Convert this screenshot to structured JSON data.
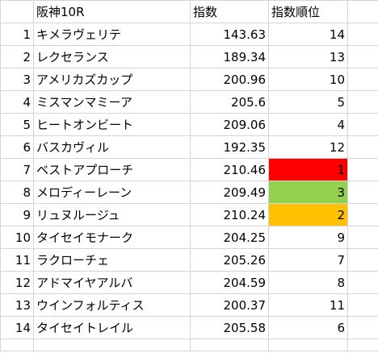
{
  "headers": {
    "col_b": "阪神10R",
    "col_c": "指数",
    "col_d": "指数順位"
  },
  "rows": [
    {
      "n": "1",
      "name": "キメラヴェリテ",
      "index": "143.63",
      "rank": "14",
      "fill": ""
    },
    {
      "n": "2",
      "name": "レクセランス",
      "index": "189.34",
      "rank": "13",
      "fill": ""
    },
    {
      "n": "3",
      "name": "アメリカズカップ",
      "index": "200.96",
      "rank": "10",
      "fill": ""
    },
    {
      "n": "4",
      "name": "ミスマンマミーア",
      "index": "205.6",
      "rank": "5",
      "fill": ""
    },
    {
      "n": "5",
      "name": "ヒートオンビート",
      "index": "209.06",
      "rank": "4",
      "fill": ""
    },
    {
      "n": "6",
      "name": "バスカヴィル",
      "index": "192.35",
      "rank": "12",
      "fill": ""
    },
    {
      "n": "7",
      "name": "ベストアプローチ",
      "index": "210.46",
      "rank": "1",
      "fill": "#ff0000"
    },
    {
      "n": "8",
      "name": "メロディーレーン",
      "index": "209.49",
      "rank": "3",
      "fill": "#92d050"
    },
    {
      "n": "9",
      "name": "リュヌルージュ",
      "index": "210.24",
      "rank": "2",
      "fill": "#ffc000"
    },
    {
      "n": "10",
      "name": "タイセイモナーク",
      "index": "204.25",
      "rank": "9",
      "fill": ""
    },
    {
      "n": "11",
      "name": "ラクローチェ",
      "index": "205.26",
      "rank": "7",
      "fill": ""
    },
    {
      "n": "12",
      "name": "アドマイヤアルバ",
      "index": "204.59",
      "rank": "8",
      "fill": ""
    },
    {
      "n": "13",
      "name": "ウインフォルティス",
      "index": "200.37",
      "rank": "11",
      "fill": ""
    },
    {
      "n": "14",
      "name": "タイセイトレイル",
      "index": "205.58",
      "rank": "6",
      "fill": ""
    }
  ]
}
